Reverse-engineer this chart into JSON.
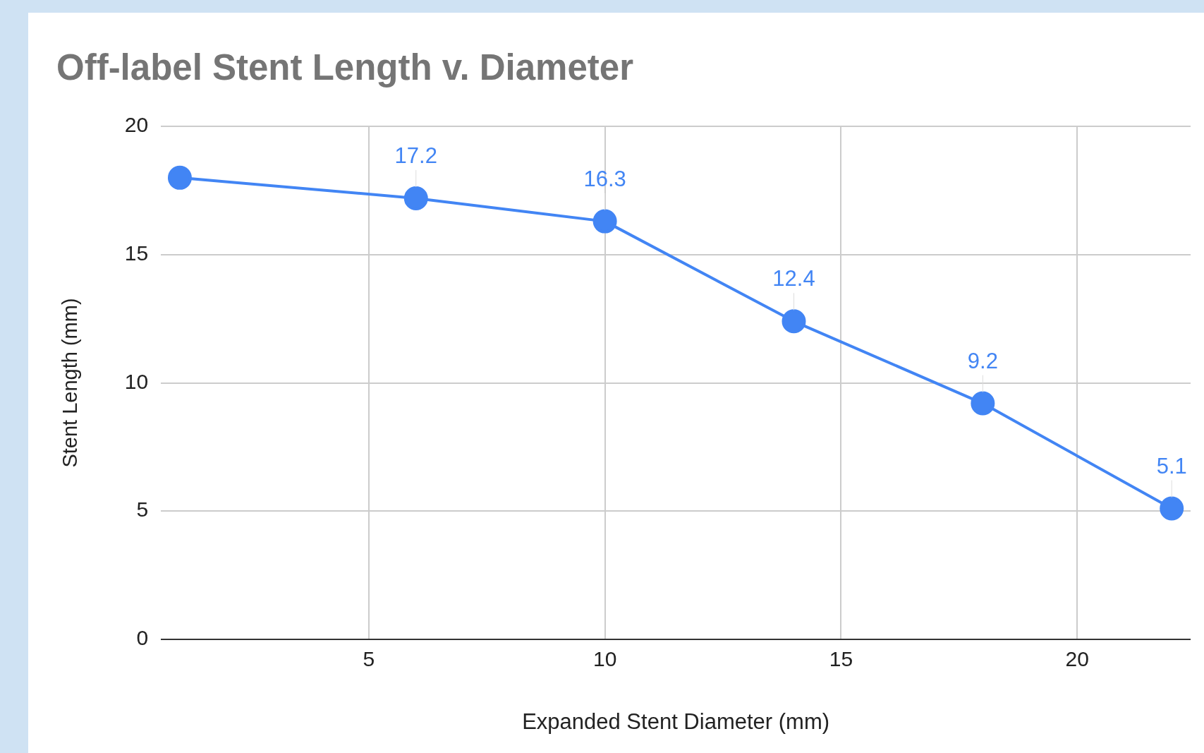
{
  "chart_data": {
    "type": "line",
    "title": "Off-label Stent Length v. Diameter",
    "xlabel": "Expanded Stent Diameter (mm)",
    "ylabel": "Stent Length (mm)",
    "x": [
      1,
      6,
      10,
      14,
      18,
      22
    ],
    "series": [
      {
        "color": "#4285f4",
        "values": [
          18,
          17.2,
          16.3,
          12.4,
          9.2,
          5.1
        ],
        "value_labels": [
          null,
          "17.2",
          "16.3",
          "12.4",
          "9.2",
          "5.1"
        ]
      }
    ],
    "xlim": [
      0.6,
      22.4
    ],
    "xticks": [
      5,
      10,
      15,
      20
    ],
    "ylim": [
      0,
      20
    ],
    "yticks": [
      0,
      5,
      10,
      15,
      20
    ],
    "grid": true,
    "legend": false,
    "marker": "circle",
    "line_style": "solid"
  }
}
